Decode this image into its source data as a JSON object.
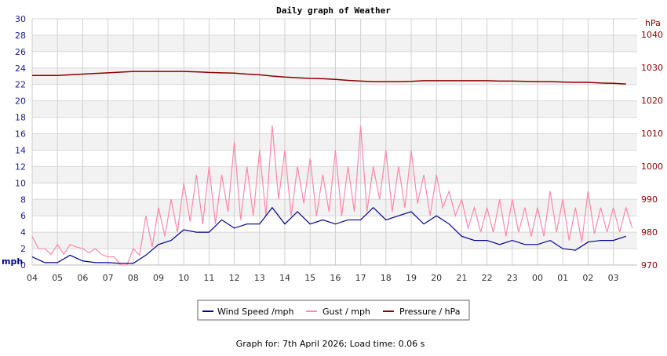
{
  "chart_data": {
    "type": "line",
    "title": "Daily graph of Weather",
    "footer": "Graph for: 7th April 2026; Load time: 0.06 s",
    "left_axis": {
      "label": "mph",
      "range": [
        0,
        30
      ],
      "ticks": [
        "0",
        "2",
        "4",
        "6",
        "8",
        "10",
        "12",
        "14",
        "16",
        "18",
        "20",
        "22",
        "24",
        "26",
        "28",
        "30"
      ],
      "color": "#1a1a8c"
    },
    "right_axis": {
      "label": "hPa",
      "range": [
        970,
        1044.8
      ],
      "ticks": [
        "970",
        "980",
        "990",
        "1000",
        "1010",
        "1020",
        "1030",
        "1040"
      ],
      "color": "#8b0000"
    },
    "x_ticks": [
      "04",
      "05",
      "06",
      "07",
      "08",
      "09",
      "10",
      "11",
      "12",
      "13",
      "14",
      "15",
      "16",
      "17",
      "18",
      "19",
      "20",
      "21",
      "22",
      "23",
      "00",
      "01",
      "02",
      "03"
    ],
    "grid": true,
    "legend_position": "bottom",
    "x": [
      "04:00",
      "04:30",
      "05:00",
      "05:30",
      "06:00",
      "06:30",
      "07:00",
      "07:30",
      "08:00",
      "08:30",
      "09:00",
      "09:30",
      "10:00",
      "10:30",
      "11:00",
      "11:30",
      "12:00",
      "12:30",
      "13:00",
      "13:30",
      "14:00",
      "14:30",
      "15:00",
      "15:30",
      "16:00",
      "16:30",
      "17:00",
      "17:30",
      "18:00",
      "18:30",
      "19:00",
      "19:30",
      "20:00",
      "20:30",
      "21:00",
      "21:30",
      "22:00",
      "22:30",
      "23:00",
      "23:30",
      "00:00",
      "00:30",
      "01:00",
      "01:30",
      "02:00",
      "02:30",
      "03:00",
      "03:30"
    ],
    "series": [
      {
        "name": "Wind Speed /mph",
        "axis": "left",
        "color": "#00008b",
        "values": [
          1,
          0.3,
          0.3,
          1.2,
          0.5,
          0.3,
          0.3,
          0.2,
          0.2,
          1.2,
          2.5,
          3,
          4.3,
          4,
          4,
          5.5,
          4.5,
          5,
          5,
          7,
          5,
          6.5,
          5,
          5.5,
          5,
          5.5,
          5.5,
          7,
          5.5,
          6,
          6.5,
          5,
          6,
          5,
          3.5,
          3,
          3,
          2.5,
          3,
          2.5,
          2.5,
          3,
          2,
          1.8,
          2.8,
          3,
          3,
          3.5
        ]
      },
      {
        "name": "Gust / mph",
        "axis": "left",
        "color": "#ff88aa",
        "values": [
          3.5,
          2,
          2.5,
          2.5,
          2,
          2,
          1,
          0,
          2,
          6,
          7,
          8,
          10,
          11,
          12,
          11,
          15,
          12,
          14,
          17,
          14,
          12,
          13,
          11,
          14,
          12,
          17,
          12,
          14,
          12,
          14,
          11,
          11,
          9,
          8,
          7,
          7,
          8,
          8,
          7,
          7,
          9,
          8,
          7,
          9,
          7,
          7,
          7
        ]
      },
      {
        "name": "Pressure / hPa",
        "axis": "right",
        "color": "#8b0000",
        "values": [
          1027.6,
          1027.6,
          1027.6,
          1027.8,
          1028.0,
          1028.2,
          1028.4,
          1028.6,
          1028.8,
          1028.8,
          1028.8,
          1028.8,
          1028.8,
          1028.7,
          1028.5,
          1028.4,
          1028.3,
          1028.0,
          1027.8,
          1027.4,
          1027.1,
          1026.9,
          1026.7,
          1026.6,
          1026.4,
          1026.1,
          1025.9,
          1025.7,
          1025.7,
          1025.7,
          1025.8,
          1026.0,
          1026.0,
          1026.0,
          1026.0,
          1026.0,
          1026.0,
          1025.9,
          1025.9,
          1025.8,
          1025.7,
          1025.7,
          1025.6,
          1025.5,
          1025.5,
          1025.3,
          1025.2,
          1025.0
        ]
      }
    ]
  }
}
